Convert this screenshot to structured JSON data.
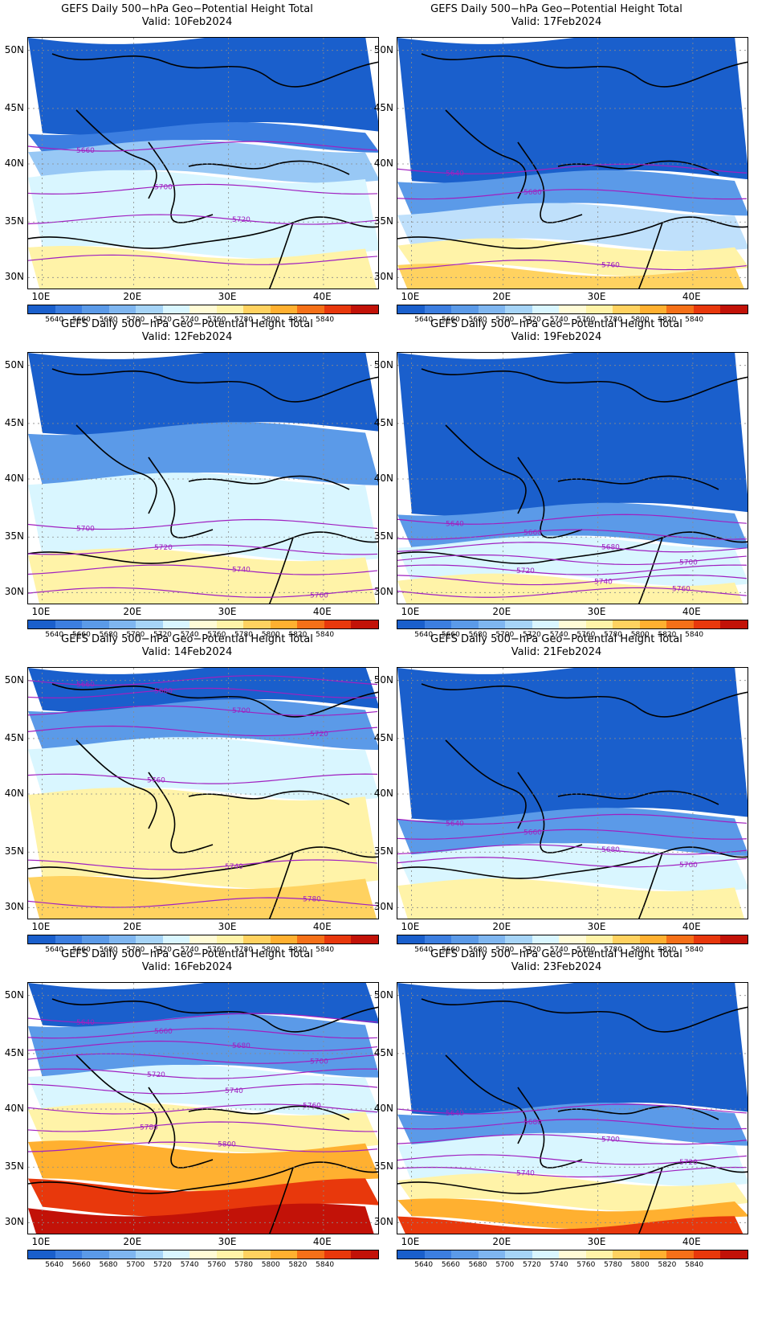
{
  "panels": [
    {
      "title": "GEFS Daily 500−hPa Geo−Potential Height Total",
      "valid": "Valid:  10Feb2024",
      "bands": [
        [
          0.0,
          0.36,
          "#1a5fcc"
        ],
        [
          0.36,
          0.43,
          "#3c7ee0"
        ],
        [
          0.43,
          0.55,
          "#98c8f5"
        ],
        [
          0.55,
          0.85,
          "#d9f6ff"
        ],
        [
          0.85,
          1.0,
          "#fff3a8"
        ]
      ],
      "contours": [
        {
          "y": 0.43,
          "label": "5660"
        },
        {
          "y": 0.6,
          "label": "5700"
        },
        {
          "y": 0.72,
          "label": "5720"
        },
        {
          "y": 0.88,
          "label": ""
        }
      ]
    },
    {
      "title": "GEFS Daily 500−hPa Geo−Potential Height Total",
      "valid": "Valid:  17Feb2024",
      "bands": [
        [
          0.0,
          0.55,
          "#1a5fcc"
        ],
        [
          0.55,
          0.68,
          "#5b9ae8"
        ],
        [
          0.68,
          0.82,
          "#bfe0fb"
        ],
        [
          0.82,
          0.92,
          "#fff3a8"
        ],
        [
          0.92,
          1.0,
          "#ffd260"
        ]
      ],
      "contours": [
        {
          "y": 0.52,
          "label": "5640"
        },
        {
          "y": 0.62,
          "label": "5680"
        },
        {
          "y": 0.9,
          "label": "5760"
        }
      ]
    },
    {
      "title": "GEFS Daily 500−hPa Geo−Potential Height Total",
      "valid": "Valid:  12Feb2024",
      "bands": [
        [
          0.0,
          0.3,
          "#1a5fcc"
        ],
        [
          0.3,
          0.5,
          "#5b9ae8"
        ],
        [
          0.5,
          0.8,
          "#d9f6ff"
        ],
        [
          0.8,
          1.0,
          "#fff3a8"
        ]
      ],
      "contours": [
        {
          "y": 0.68,
          "label": "5700"
        },
        {
          "y": 0.78,
          "label": "5720"
        },
        {
          "y": 0.86,
          "label": "5740"
        },
        {
          "y": 0.95,
          "label": "5760"
        }
      ]
    },
    {
      "title": "GEFS Daily 500−hPa Geo−Potential Height Total",
      "valid": "Valid:  19Feb2024",
      "bands": [
        [
          0.0,
          0.62,
          "#1a5fcc"
        ],
        [
          0.62,
          0.75,
          "#5b9ae8"
        ],
        [
          0.75,
          0.9,
          "#d9f6ff"
        ],
        [
          0.9,
          1.0,
          "#fff3a8"
        ]
      ],
      "contours": [
        {
          "y": 0.66,
          "label": "5640"
        },
        {
          "y": 0.72,
          "label": "5660"
        },
        {
          "y": 0.77,
          "label": "5680"
        },
        {
          "y": 0.82,
          "label": "5700"
        },
        {
          "y": 0.86,
          "label": "5720"
        },
        {
          "y": 0.9,
          "label": "5740"
        },
        {
          "y": 0.95,
          "label": "5760"
        }
      ]
    },
    {
      "title": "GEFS Daily 500−hPa Geo−Potential Height Total",
      "valid": "Valid:  14Feb2024",
      "bands": [
        [
          0.0,
          0.15,
          "#1a5fcc"
        ],
        [
          0.15,
          0.3,
          "#5b9ae8"
        ],
        [
          0.3,
          0.5,
          "#d9f6ff"
        ],
        [
          0.5,
          0.85,
          "#fff3a8"
        ],
        [
          0.85,
          1.0,
          "#ffd260"
        ]
      ],
      "contours": [
        {
          "y": 0.05,
          "label": "5660"
        },
        {
          "y": 0.1,
          "label": "5680"
        },
        {
          "y": 0.17,
          "label": "5700"
        },
        {
          "y": 0.25,
          "label": "5720"
        },
        {
          "y": 0.44,
          "label": "5760"
        },
        {
          "y": 0.78,
          "label": "5740"
        },
        {
          "y": 0.93,
          "label": "5780"
        }
      ]
    },
    {
      "title": "GEFS Daily 500−hPa Geo−Potential Height Total",
      "valid": "Valid:  21Feb2024",
      "bands": [
        [
          0.0,
          0.58,
          "#1a5fcc"
        ],
        [
          0.58,
          0.72,
          "#5b9ae8"
        ],
        [
          0.72,
          0.86,
          "#d9f6ff"
        ],
        [
          0.86,
          1.0,
          "#fff3a8"
        ]
      ],
      "contours": [
        {
          "y": 0.6,
          "label": "5640"
        },
        {
          "y": 0.66,
          "label": "5660"
        },
        {
          "y": 0.72,
          "label": "5680"
        },
        {
          "y": 0.77,
          "label": "5700"
        }
      ]
    },
    {
      "title": "GEFS Daily 500−hPa Geo−Potential Height Total",
      "valid": "Valid:  16Feb2024",
      "bands": [
        [
          0.0,
          0.15,
          "#1a5fcc"
        ],
        [
          0.15,
          0.35,
          "#5b9ae8"
        ],
        [
          0.35,
          0.5,
          "#d9f6ff"
        ],
        [
          0.5,
          0.65,
          "#fff3a8"
        ],
        [
          0.65,
          0.8,
          "#ffb030"
        ],
        [
          0.8,
          0.9,
          "#e8380c"
        ],
        [
          0.9,
          1.0,
          "#c21208"
        ]
      ],
      "contours": [
        {
          "y": 0.14,
          "label": "5640"
        },
        {
          "y": 0.2,
          "label": "5660"
        },
        {
          "y": 0.25,
          "label": "5680"
        },
        {
          "y": 0.3,
          "label": "5700"
        },
        {
          "y": 0.36,
          "label": "5720"
        },
        {
          "y": 0.42,
          "label": "5740"
        },
        {
          "y": 0.5,
          "label": "5760"
        },
        {
          "y": 0.57,
          "label": "5780"
        },
        {
          "y": 0.65,
          "label": "5800"
        }
      ]
    },
    {
      "title": "GEFS Daily 500−hPa Geo−Potential Height Total",
      "valid": "Valid:  23Feb2024",
      "bands": [
        [
          0.0,
          0.5,
          "#1a5fcc"
        ],
        [
          0.5,
          0.62,
          "#5b9ae8"
        ],
        [
          0.62,
          0.78,
          "#d9f6ff"
        ],
        [
          0.78,
          0.88,
          "#fff3a8"
        ],
        [
          0.88,
          0.95,
          "#ffb030"
        ],
        [
          0.95,
          1.0,
          "#e8380c"
        ]
      ],
      "contours": [
        {
          "y": 0.5,
          "label": "5640"
        },
        {
          "y": 0.56,
          "label": "5680"
        },
        {
          "y": 0.62,
          "label": "5700"
        },
        {
          "y": 0.7,
          "label": "5720"
        },
        {
          "y": 0.75,
          "label": "5740"
        }
      ]
    }
  ],
  "lat_labels": [
    "50N",
    "45N",
    "40N",
    "35N",
    "30N"
  ],
  "lon_labels": [
    "10E",
    "20E",
    "30E",
    "40E"
  ],
  "colorbar": {
    "colors": [
      "#1a5fcc",
      "#3c7ee0",
      "#5b9ae8",
      "#7fb6f0",
      "#a6d4f7",
      "#d9f6ff",
      "#fffbd6",
      "#fff3a8",
      "#ffd260",
      "#ffb030",
      "#f57018",
      "#e8380c",
      "#c21208"
    ],
    "labels": [
      "5640",
      "5660",
      "5680",
      "5700",
      "5720",
      "5740",
      "5760",
      "5780",
      "5800",
      "5820",
      "5840"
    ]
  },
  "contour_color": "#a020c0"
}
